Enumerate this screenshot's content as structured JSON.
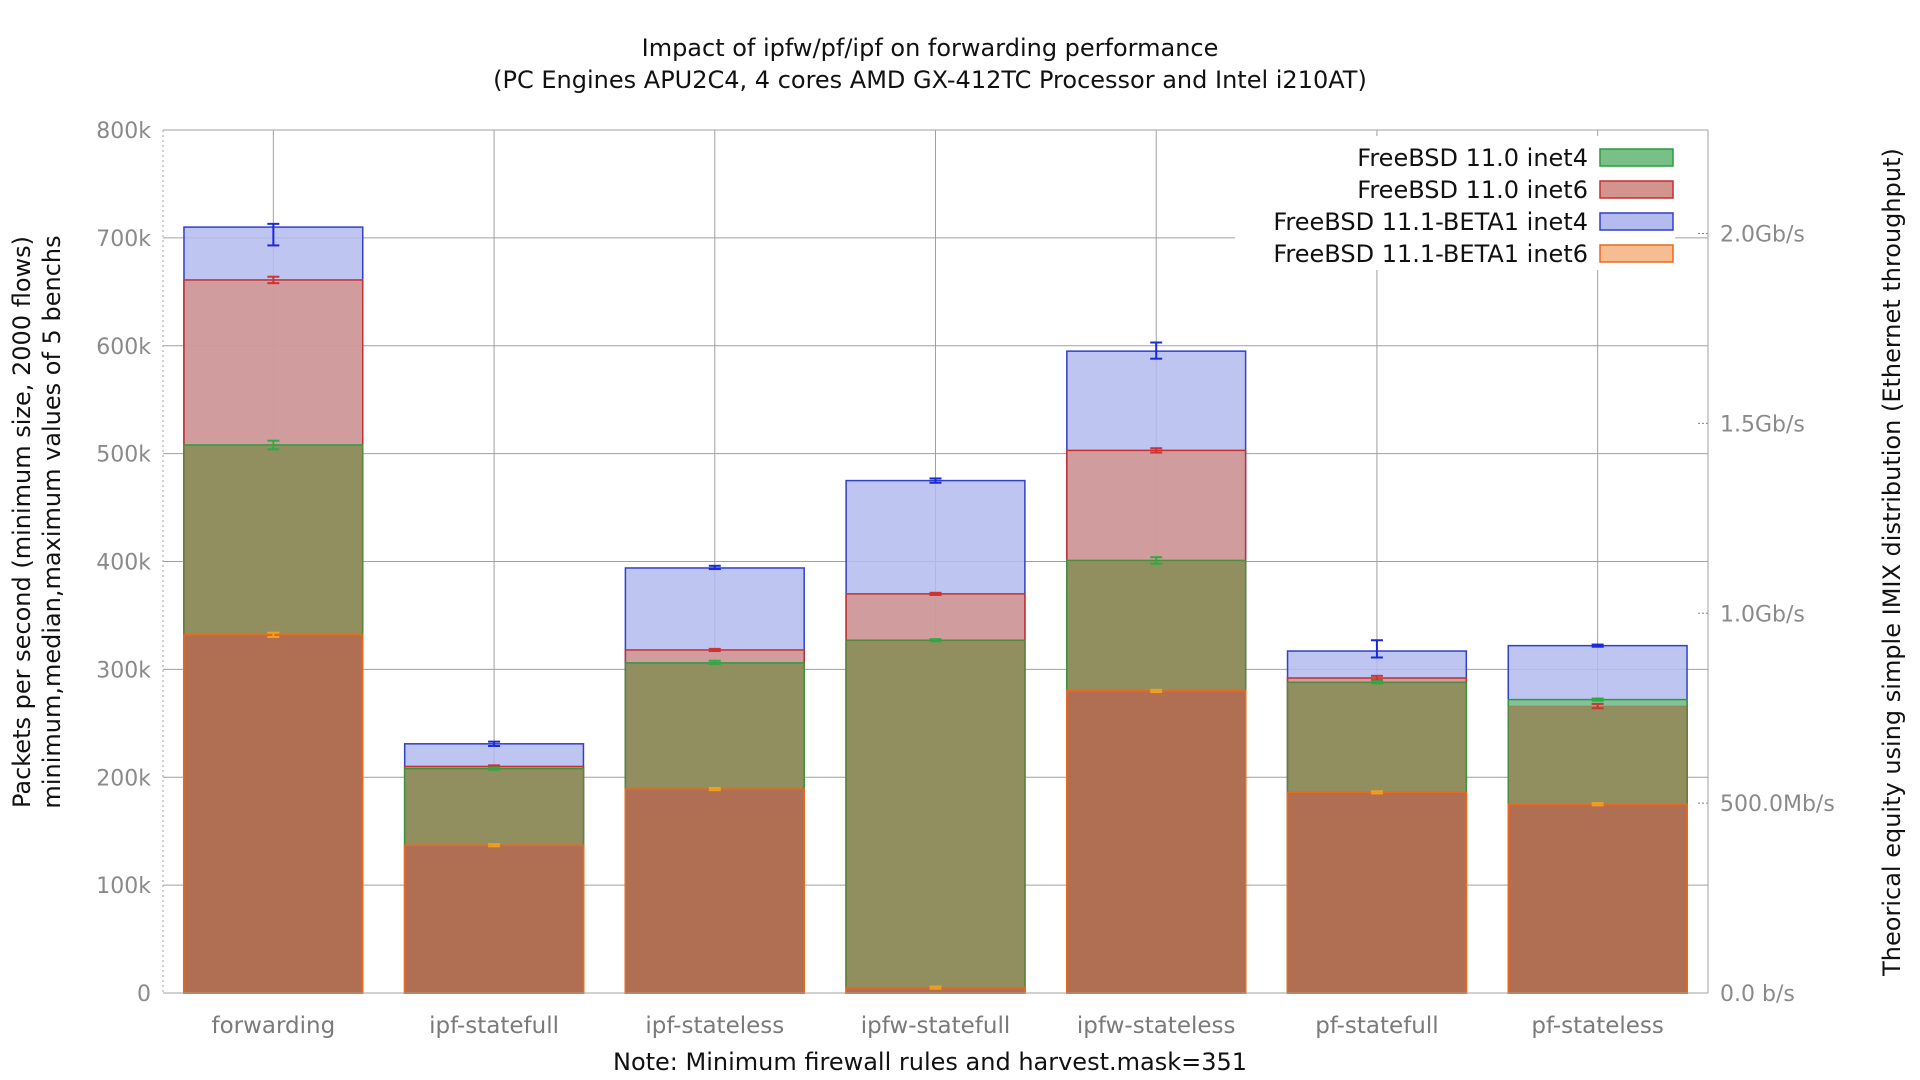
{
  "chart_data": {
    "type": "bar",
    "title": "Impact of ipfw/pf/ipf on forwarding performance",
    "subtitle": "(PC Engines APU2C4, 4 cores AMD GX-412TC Processor and Intel i210AT)",
    "ylabel_line1": "Packets per second (minimum size, 2000 flows)",
    "ylabel_line2": "minimum,median,maximum values of 5 benchs",
    "y2label": "Theorical equity using simple IMIX distribution (Ethernet throughput)",
    "note": "Note: Minimum firewall rules and harvest.mask=351",
    "ylim": [
      0,
      800000
    ],
    "y_ticks": [
      {
        "value": 0,
        "label": "0"
      },
      {
        "value": 100000,
        "label": "100k"
      },
      {
        "value": 200000,
        "label": "200k"
      },
      {
        "value": 300000,
        "label": "300k"
      },
      {
        "value": 400000,
        "label": "400k"
      },
      {
        "value": 500000,
        "label": "500k"
      },
      {
        "value": 600000,
        "label": "600k"
      },
      {
        "value": 700000,
        "label": "700k"
      },
      {
        "value": 800000,
        "label": "800k"
      }
    ],
    "y2_ticks": [
      {
        "value": 0,
        "label": "0.0 b/s"
      },
      {
        "value": 176000,
        "label": "500.0Mb/s"
      },
      {
        "value": 352000,
        "label": "1.0Gb/s"
      },
      {
        "value": 528000,
        "label": "1.5Gb/s"
      },
      {
        "value": 704000,
        "label": "2.0Gb/s"
      }
    ],
    "grid": true,
    "legend_position": "top-right",
    "categories": [
      "forwarding",
      "ipf-statefull",
      "ipf-stateless",
      "ipfw-statefull",
      "ipfw-stateless",
      "pf-statefull",
      "pf-stateless"
    ],
    "series": [
      {
        "name": "FreeBSD 11.1-BETA1 inet4",
        "fill": "#b4bbee",
        "stroke": "#3040c8",
        "err_color": "#1a2ad8",
        "values": [
          710000,
          231000,
          394000,
          475000,
          595000,
          317000,
          322000
        ],
        "err_min": [
          693000,
          229000,
          393000,
          473000,
          588000,
          311000,
          321000
        ],
        "err_max": [
          713000,
          233000,
          396000,
          477000,
          603000,
          327000,
          323000
        ]
      },
      {
        "name": "FreeBSD 11.0 inet6",
        "fill": "#d4948e",
        "stroke": "#c43030",
        "err_color": "#cc3333",
        "values": [
          661000,
          210000,
          318000,
          370000,
          503000,
          292000,
          266000
        ],
        "err_min": [
          658000,
          209000,
          317000,
          369000,
          501000,
          290000,
          264000
        ],
        "err_max": [
          664000,
          211000,
          319000,
          371000,
          505000,
          294000,
          268000
        ]
      },
      {
        "name": "FreeBSD 11.0 inet4",
        "fill": "#78c088",
        "stroke": "#2a9c3e",
        "err_color": "#2faa44",
        "values": [
          508000,
          208000,
          306000,
          327000,
          401000,
          288000,
          272000
        ],
        "err_min": [
          504000,
          207000,
          305000,
          326000,
          398000,
          287000,
          271000
        ],
        "err_max": [
          512000,
          209000,
          308000,
          328000,
          404000,
          289000,
          273000
        ]
      },
      {
        "name": "FreeBSD 11.1-BETA1 inet6",
        "fill": "#f6bc92",
        "stroke": "#ea6a1c",
        "err_color": "#f0a020",
        "values": [
          332000,
          137000,
          189000,
          5000,
          280000,
          186000,
          175000
        ],
        "err_min": [
          330000,
          136000,
          188000,
          4000,
          279000,
          185000,
          174000
        ],
        "err_max": [
          334000,
          138000,
          190000,
          6000,
          281000,
          187000,
          176000
        ]
      }
    ],
    "legend_order": [
      "FreeBSD 11.0 inet4",
      "FreeBSD 11.0 inet6",
      "FreeBSD 11.1-BETA1 inet4",
      "FreeBSD 11.1-BETA1 inet6"
    ]
  },
  "colors": {
    "grid": "#a0a0a0",
    "axis": "#808080",
    "overlay_fill": "#9a6a3e",
    "overlay_opacity": 0.55,
    "bottom_layer_fill": "#a85a48"
  }
}
